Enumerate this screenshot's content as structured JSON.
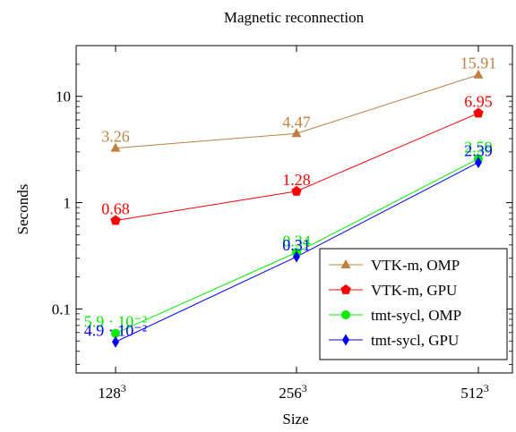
{
  "chart_data": {
    "type": "line",
    "title": "Magnetic reconnection",
    "xlabel": "Size",
    "ylabel": "Seconds",
    "yscale": "log",
    "ylim": [
      0.025,
      30
    ],
    "grid": false,
    "legend_position": "bottom-right",
    "x_tick_labels": [
      {
        "base": "128",
        "exp": "3"
      },
      {
        "base": "256",
        "exp": "3"
      },
      {
        "base": "512",
        "exp": "3"
      }
    ],
    "y_ticks": [
      {
        "value": 0.1,
        "label": "0.1"
      },
      {
        "value": 1,
        "label": "1"
      },
      {
        "value": 10,
        "label": "10"
      }
    ],
    "series": [
      {
        "name": "VTK-m, OMP",
        "color": "#bf8040",
        "marker": "triangle",
        "values": [
          3.26,
          4.47,
          15.91
        ],
        "labels": [
          "3.26",
          "4.47",
          "15.91"
        ]
      },
      {
        "name": "VTK-m, GPU",
        "color": "#ff0000",
        "marker": "pentagon",
        "values": [
          0.68,
          1.28,
          6.95
        ],
        "labels": [
          "0.68",
          "1.28",
          "6.95"
        ]
      },
      {
        "name": "tmt-sycl, OMP",
        "color": "#00ee00",
        "marker": "circle",
        "values": [
          0.059,
          0.34,
          2.59
        ],
        "labels": [
          "5.9 · 10⁻²",
          "0.34",
          "2.59"
        ]
      },
      {
        "name": "tmt-sycl, GPU",
        "color": "#0000ff",
        "marker": "diamond",
        "values": [
          0.049,
          0.31,
          2.39
        ],
        "labels": [
          "4.9 · 10⁻²",
          "0.31",
          "2.39"
        ]
      }
    ]
  }
}
